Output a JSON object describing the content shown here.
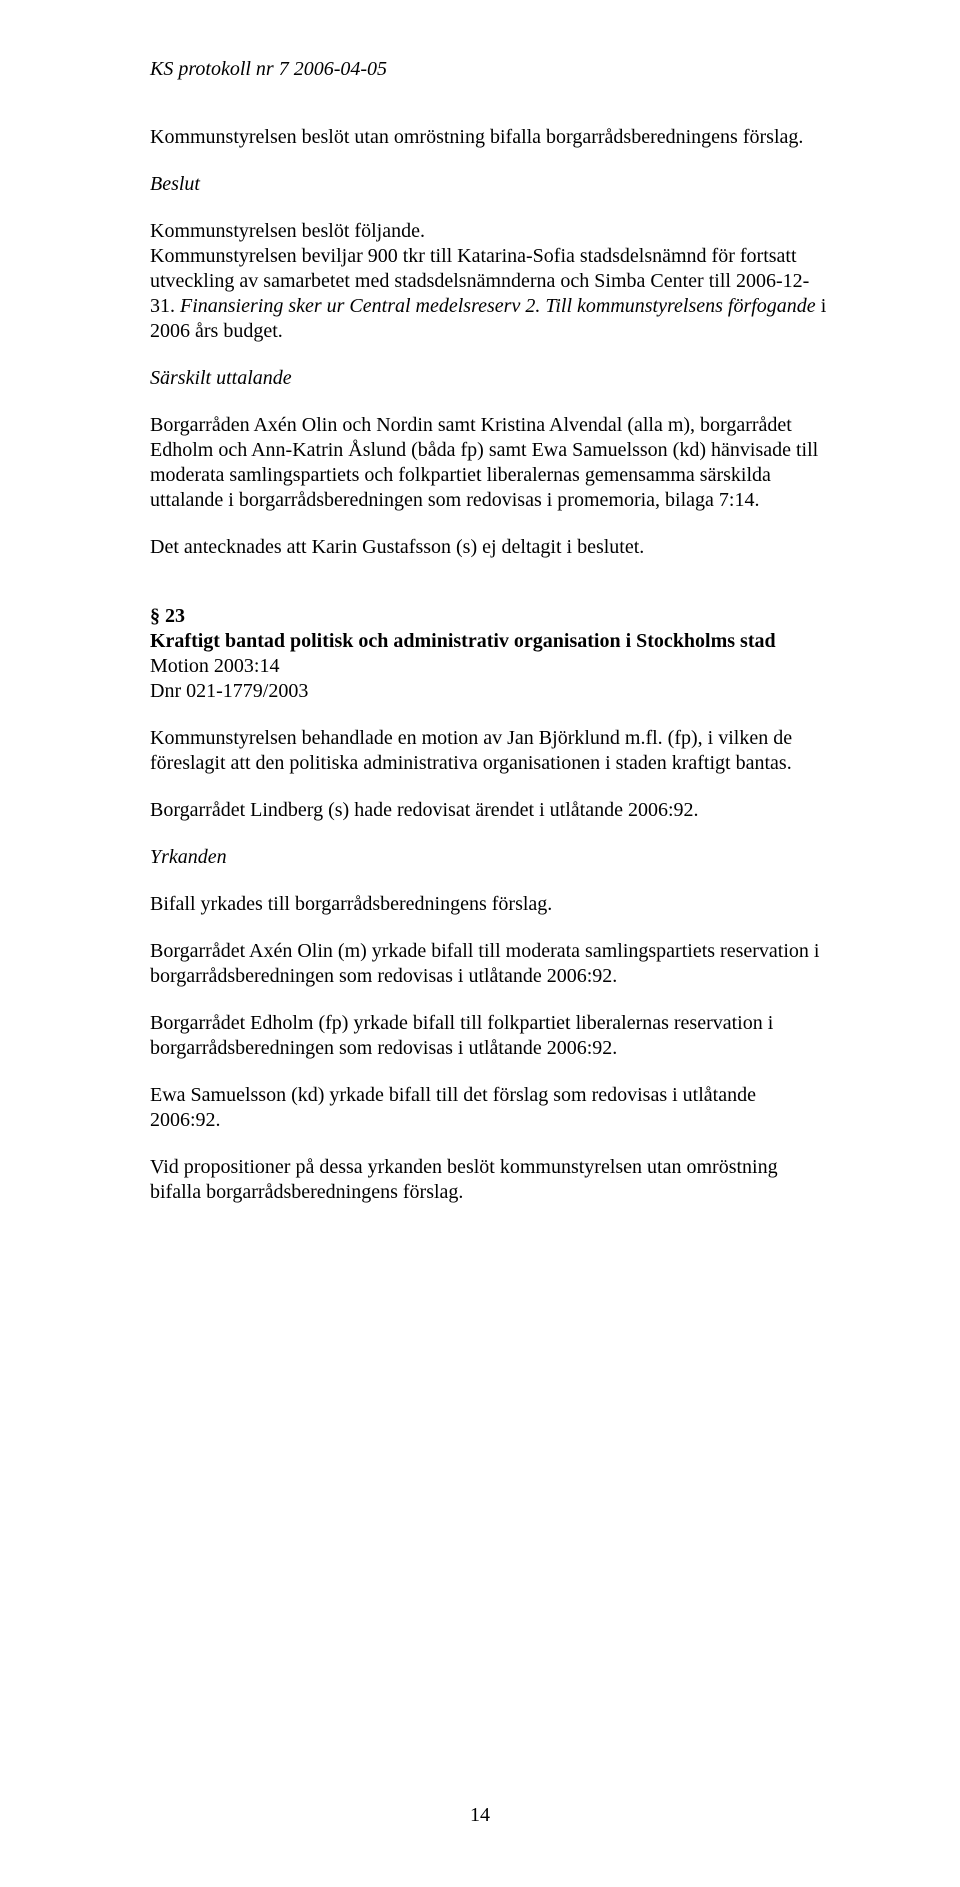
{
  "header": "KS protokoll nr 7  2006-04-05",
  "p1": "Kommunstyrelsen beslöt utan omröstning bifalla borgarrådsberedningens förslag.",
  "beslut_label": "Beslut",
  "p2": "Kommunstyrelsen beslöt följande.",
  "p3_a": "Kommunstyrelsen beviljar 900 tkr till Katarina-Sofia stadsdelsnämnd för fortsatt utveckling av samarbetet med stadsdelsnämnderna och Simba Center till 2006-12-31. ",
  "p3_b": "Finansiering sker ur Central medelsreserv 2. Till kommunstyrelsens förfogande",
  "p3_c": " i 2006 års budget.",
  "sarskilt_label": "Särskilt uttalande",
  "p4": "Borgarråden Axén Olin och Nordin samt Kristina Alvendal (alla m), borgarrådet Edholm och Ann-Katrin Åslund (båda fp) samt Ewa Samuelsson (kd) hänvisade till moderata samlingspartiets och folkpartiet liberalernas gemensamma särskilda uttalande i borgarrådsberedningen som redovisas i promemoria, bilaga 7:14.",
  "p5": "Det antecknades att Karin Gustafsson (s) ej deltagit i beslutet.",
  "section23_num": "§ 23",
  "section23_title": "Kraftigt bantad politisk och administrativ organisation i Stockholms stad",
  "section23_motion": "Motion 2003:14",
  "section23_dnr": "Dnr 021-1779/2003",
  "p6": "Kommunstyrelsen behandlade en motion av Jan Björklund m.fl. (fp), i vilken de föreslagit att den politiska administrativa organisationen i staden kraftigt bantas.",
  "p7": "Borgarrådet Lindberg (s) hade redovisat ärendet i utlåtande 2006:92.",
  "yrkanden_label": "Yrkanden",
  "p8": "Bifall yrkades till borgarrådsberedningens förslag.",
  "p9": "Borgarrådet Axén Olin (m) yrkade bifall till moderata samlingspartiets reservation i borgarrådsberedningen som redovisas i utlåtande 2006:92.",
  "p10": "Borgarrådet Edholm (fp) yrkade bifall till folkpartiet liberalernas reservation i borgarrådsberedningen som redovisas i utlåtande 2006:92.",
  "p11": "Ewa Samuelsson (kd) yrkade bifall till det förslag som redovisas i utlåtande 2006:92.",
  "p12": "Vid propositioner på dessa yrkanden beslöt kommunstyrelsen utan omröstning bifalla borgarrådsberedningens förslag.",
  "page_number": "14"
}
